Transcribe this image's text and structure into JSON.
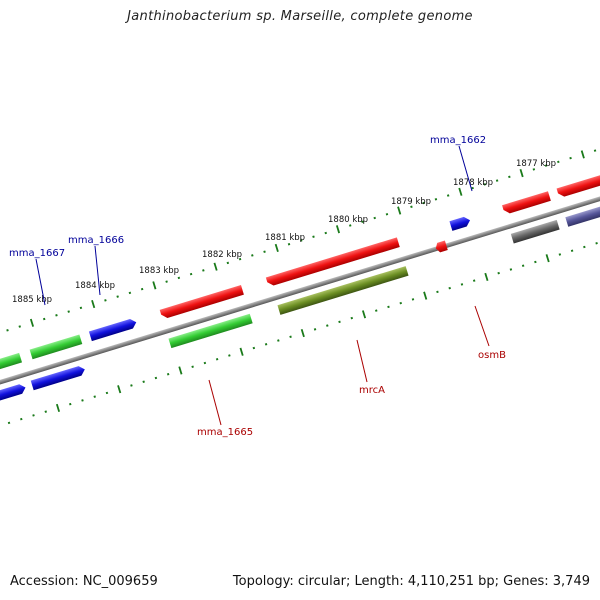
{
  "title": "Janthinobacterium sp. Marseille, complete genome",
  "footer": {
    "accession": "Accession: NC_009659",
    "topology": "Topology: circular; Length: 4,110,251 bp; Genes: 3,749"
  },
  "scale_labels": [
    "1877 kbp",
    "1878 kbp",
    "1879 kbp",
    "1880 kbp",
    "1881 kbp",
    "1882 kbp",
    "1883 kbp",
    "1884 kbp",
    "1885 kbp"
  ],
  "genes": {
    "mma_1662": "mma_1662",
    "mma_1666": "mma_1666",
    "mma_1667": "mma_1667",
    "mma_1665": "mma_1665",
    "mrcA": "mrcA",
    "osmB": "osmB"
  },
  "colors": {
    "backbone": "#888888",
    "tick": "#1a7a1a",
    "forward_red": "#ee1111",
    "forward_green": "#33cc33",
    "blue": "#1111dd",
    "olive": "#6b8e23",
    "grey": "#666666",
    "slate": "#555599",
    "label_blue": "#000099",
    "label_red": "#aa0000"
  }
}
